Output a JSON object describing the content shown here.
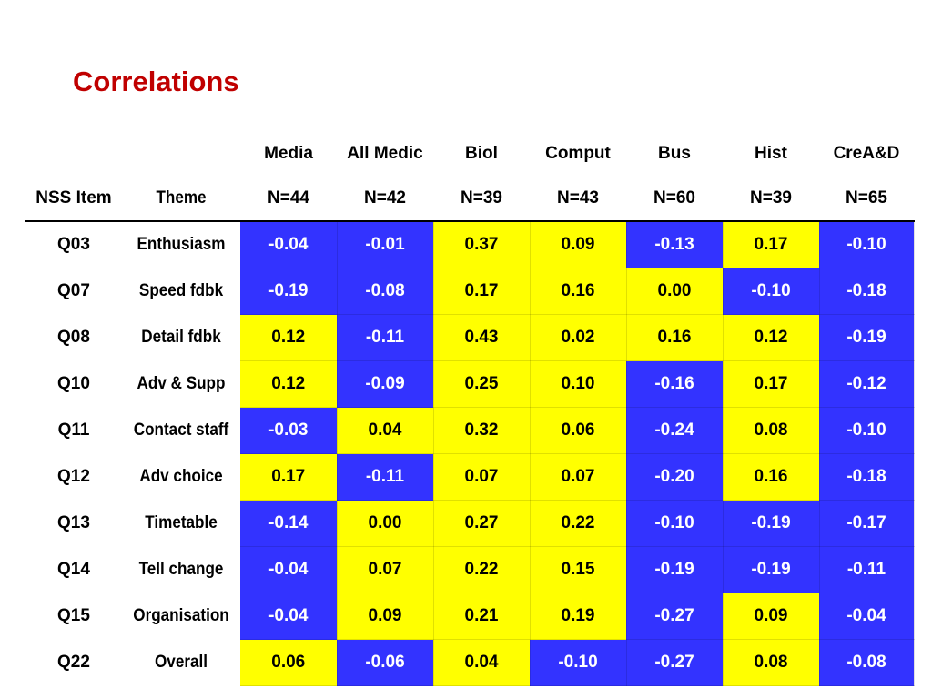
{
  "title": "Correlations",
  "header": {
    "col_item": "NSS Item",
    "col_theme": "Theme",
    "subjects": [
      "Media",
      "All Medic",
      "Biol",
      "Comput",
      "Bus",
      "Hist",
      "CreA&D"
    ],
    "sample_sizes": [
      "N=44",
      "N=42",
      "N=39",
      "N=43",
      "N=60",
      "N=39",
      "N=65"
    ]
  },
  "colors": {
    "blue": "#3333ff",
    "yellow": "#ffff00",
    "title": "#c00000"
  },
  "rows": [
    {
      "item": "Q03",
      "theme": "Enthusiasm",
      "values": [
        "-0.04",
        "-0.01",
        "0.37",
        "0.09",
        "-0.13",
        "0.17",
        "-0.10"
      ],
      "fills": [
        "blue",
        "blue",
        "yellow",
        "yellow",
        "blue",
        "yellow",
        "blue"
      ]
    },
    {
      "item": "Q07",
      "theme": "Speed fdbk",
      "values": [
        "-0.19",
        "-0.08",
        "0.17",
        "0.16",
        "0.00",
        "-0.10",
        "-0.18"
      ],
      "fills": [
        "blue",
        "blue",
        "yellow",
        "yellow",
        "yellow",
        "blue",
        "blue"
      ]
    },
    {
      "item": "Q08",
      "theme": "Detail fdbk",
      "values": [
        "0.12",
        "-0.11",
        "0.43",
        "0.02",
        "0.16",
        "0.12",
        "-0.19"
      ],
      "fills": [
        "yellow",
        "blue",
        "yellow",
        "yellow",
        "yellow",
        "yellow",
        "blue"
      ]
    },
    {
      "item": "Q10",
      "theme": "Adv & Supp",
      "values": [
        "0.12",
        "-0.09",
        "0.25",
        "0.10",
        "-0.16",
        "0.17",
        "-0.12"
      ],
      "fills": [
        "yellow",
        "blue",
        "yellow",
        "yellow",
        "blue",
        "yellow",
        "blue"
      ]
    },
    {
      "item": "Q11",
      "theme": "Contact staff",
      "values": [
        "-0.03",
        "0.04",
        "0.32",
        "0.06",
        "-0.24",
        "0.08",
        "-0.10"
      ],
      "fills": [
        "blue",
        "yellow",
        "yellow",
        "yellow",
        "blue",
        "yellow",
        "blue"
      ]
    },
    {
      "item": "Q12",
      "theme": "Adv choice",
      "values": [
        "0.17",
        "-0.11",
        "0.07",
        "0.07",
        "-0.20",
        "0.16",
        "-0.18"
      ],
      "fills": [
        "yellow",
        "blue",
        "yellow",
        "yellow",
        "blue",
        "yellow",
        "blue"
      ]
    },
    {
      "item": "Q13",
      "theme": "Timetable",
      "values": [
        "-0.14",
        "0.00",
        "0.27",
        "0.22",
        "-0.10",
        "-0.19",
        "-0.17"
      ],
      "fills": [
        "blue",
        "yellow",
        "yellow",
        "yellow",
        "blue",
        "blue",
        "blue"
      ]
    },
    {
      "item": "Q14",
      "theme": "Tell change",
      "values": [
        "-0.04",
        "0.07",
        "0.22",
        "0.15",
        "-0.19",
        "-0.19",
        "-0.11"
      ],
      "fills": [
        "blue",
        "yellow",
        "yellow",
        "yellow",
        "blue",
        "blue",
        "blue"
      ]
    },
    {
      "item": "Q15",
      "theme": "Organisation",
      "values": [
        "-0.04",
        "0.09",
        "0.21",
        "0.19",
        "-0.27",
        "0.09",
        "-0.04"
      ],
      "fills": [
        "blue",
        "yellow",
        "yellow",
        "yellow",
        "blue",
        "yellow",
        "blue"
      ]
    },
    {
      "item": "Q22",
      "theme": "Overall",
      "values": [
        "0.06",
        "-0.06",
        "0.04",
        "-0.10",
        "-0.27",
        "0.08",
        "-0.08"
      ],
      "fills": [
        "yellow",
        "blue",
        "yellow",
        "blue",
        "blue",
        "yellow",
        "blue"
      ]
    }
  ]
}
